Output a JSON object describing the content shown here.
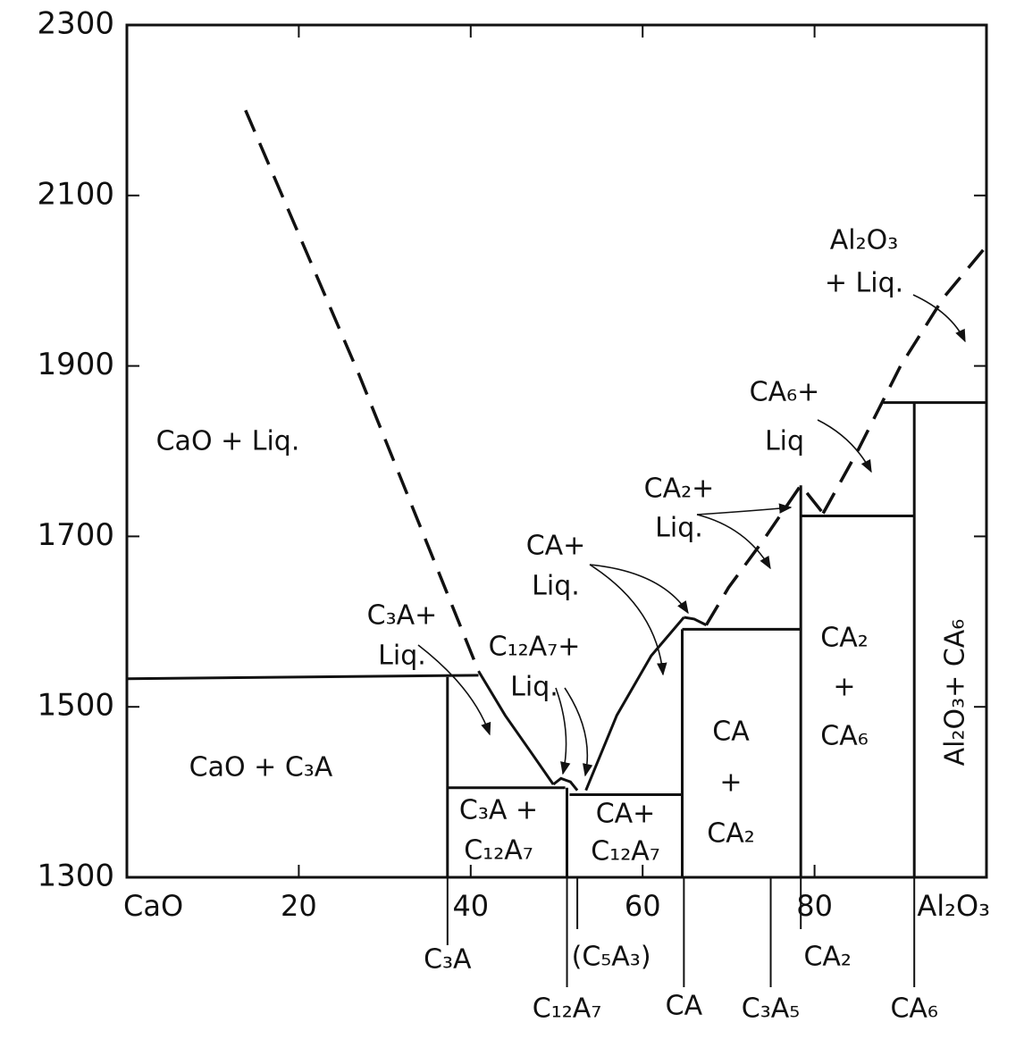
{
  "chart_data": {
    "type": "line",
    "color": "#111111",
    "xlim": [
      0,
      100
    ],
    "ylim": [
      1300,
      2300
    ],
    "xticks": [
      {
        "value": 0,
        "label": "CaO"
      },
      20,
      40,
      60,
      80,
      {
        "value": 100,
        "label": "Al₂O₃"
      }
    ],
    "yticks": [
      1300,
      1500,
      1700,
      1900,
      2100,
      2300
    ],
    "series": [
      {
        "style": "dashed",
        "x": [
          13.8,
          27,
          40.9
        ],
        "values": [
          2200,
          1890,
          1542
        ]
      },
      {
        "style": "solid",
        "x": [
          40.9,
          44,
          47,
          49.6
        ],
        "values": [
          1542,
          1490,
          1447,
          1409
        ]
      },
      {
        "style": "solid",
        "x": [
          49.6,
          50.5,
          51.6,
          52.4
        ],
        "values": [
          1409,
          1416,
          1412,
          1402
        ]
      },
      {
        "style": "solid",
        "x": [
          53.4,
          57,
          61,
          64.8
        ],
        "values": [
          1402,
          1490,
          1560,
          1605
        ]
      },
      {
        "style": "solid",
        "x": [
          64.8,
          66,
          67.4
        ],
        "values": [
          1605,
          1603,
          1596
        ]
      },
      {
        "style": "dashed",
        "x": [
          67.4,
          70,
          74,
          78.4,
          81
        ],
        "values": [
          1596,
          1640,
          1695,
          1760,
          1727
        ]
      },
      {
        "style": "dashed",
        "x": [
          81,
          85,
          90,
          95,
          100.2
        ],
        "values": [
          1727,
          1800,
          1900,
          1980,
          2043
        ]
      },
      {
        "style": "solid",
        "x": [
          0,
          40.9
        ],
        "values": [
          1533,
          1537
        ]
      },
      {
        "style": "solid",
        "x": [
          37.3,
          51
        ],
        "values": [
          1405,
          1405
        ]
      },
      {
        "style": "solid",
        "x": [
          51.5,
          64.6
        ],
        "values": [
          1397,
          1397
        ]
      },
      {
        "style": "solid",
        "x": [
          64.6,
          78.4
        ],
        "values": [
          1591,
          1591
        ]
      },
      {
        "style": "solid",
        "x": [
          78.4,
          91.6
        ],
        "values": [
          1724,
          1724
        ]
      },
      {
        "style": "solid",
        "x": [
          88,
          100
        ],
        "values": [
          1857,
          1857
        ]
      },
      {
        "style": "solid",
        "x": [
          37.3,
          37.3
        ],
        "values": [
          1300,
          1535
        ]
      },
      {
        "style": "solid",
        "x": [
          51.2,
          51.2
        ],
        "values": [
          1300,
          1405
        ]
      },
      {
        "style": "solid",
        "x": [
          64.6,
          64.6
        ],
        "values": [
          1300,
          1591
        ]
      },
      {
        "style": "solid",
        "x": [
          78.4,
          78.4
        ],
        "values": [
          1300,
          1760
        ]
      },
      {
        "style": "solid",
        "x": [
          91.6,
          91.6
        ],
        "values": [
          1300,
          1857
        ]
      }
    ],
    "compounds": [
      {
        "label": "C₃A",
        "x": 37.3
      },
      {
        "label": "C₁₂A₇",
        "x": 51.2
      },
      {
        "label": "(C₅A₃)",
        "x": 52.4
      },
      {
        "label": "CA",
        "x": 64.8
      },
      {
        "label": "C₃A₅",
        "x": 74.9
      },
      {
        "label": "CA₂",
        "x": 78.4
      },
      {
        "label": "CA₆",
        "x": 91.6
      }
    ],
    "annotations": [
      [
        "CaO + Liq."
      ],
      [
        "CaO + C₃A"
      ],
      [
        "C₃A+",
        "Liq."
      ],
      [
        "C₁₂A₇+",
        "Liq."
      ],
      [
        "C₃A +",
        "C₁₂A₇"
      ],
      [
        "CA+",
        "C₁₂A₇"
      ],
      [
        "CA+",
        "Liq."
      ],
      [
        "CA",
        "+",
        "CA₂"
      ],
      [
        "CA₂+",
        "Liq."
      ],
      [
        "CA₂",
        "+",
        "CA₆"
      ],
      [
        "CA₆+",
        "Liq"
      ],
      [
        "Al₂O₃",
        "+ Liq."
      ],
      [
        "Al₂O₃+ CA₆"
      ]
    ]
  }
}
